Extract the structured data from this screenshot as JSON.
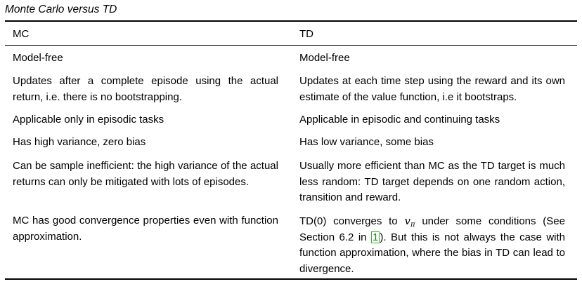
{
  "caption": "Monte Carlo versus TD",
  "columns": {
    "left_header": "MC",
    "right_header": "TD"
  },
  "rows": [
    {
      "mc": "Model-free",
      "td": "Model-free"
    },
    {
      "mc": "Updates after a complete episode using the actual return, i.e. there is no bootstrapping.",
      "td": "Updates at each time step using the reward and its own estimate of the value function, i.e it bootstraps."
    },
    {
      "mc": "Applicable only in episodic tasks",
      "td": "Applicable in episodic and continuing tasks"
    },
    {
      "mc": "Has high variance, zero bias",
      "td": "Has low variance, some bias"
    },
    {
      "mc": "Can be sample inefficient: the high variance of the actual returns can only be mitigated with lots of episodes.",
      "td": "Usually more efficient than MC as the TD target is much less random: TD target depends on one random action, transition and reward."
    },
    {
      "mc": "MC has good convergence properties even with function approximation.",
      "td_parts": {
        "prefix": "TD(0) converges to ",
        "math_base": "v",
        "math_sub": "π",
        "middle": " under some conditions (See Section 6.2 in ",
        "citation": "1",
        "suffix": "). But this is not always the case with function approximation, where the bias in TD can lead to divergence."
      }
    }
  ],
  "citation_border_color": "#2fb82f"
}
